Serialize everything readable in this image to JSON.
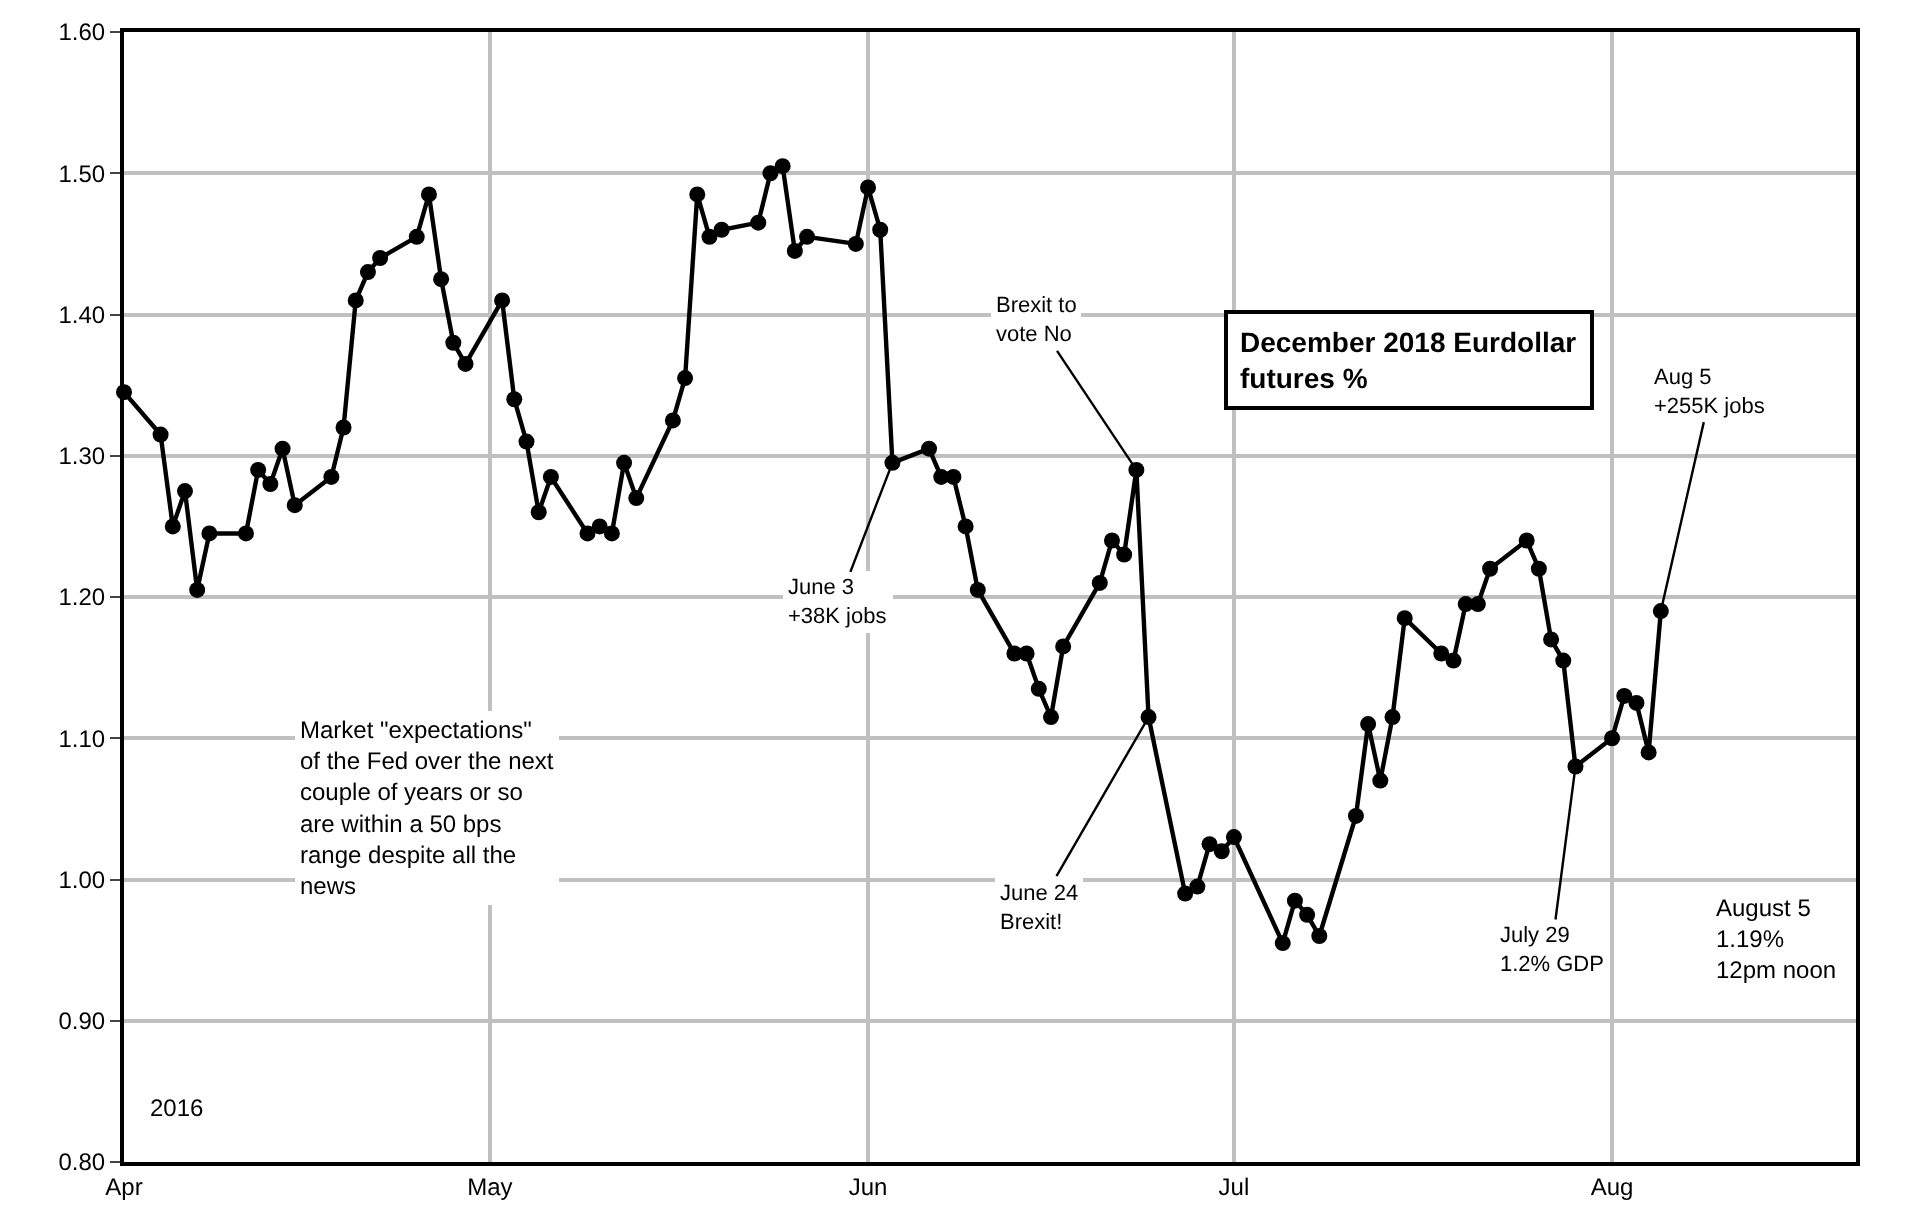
{
  "chart_data": {
    "type": "line",
    "title": "December 2018 Eurdollar futures %",
    "x": [
      "2016-04-01",
      "2016-04-04",
      "2016-04-05",
      "2016-04-06",
      "2016-04-07",
      "2016-04-08",
      "2016-04-11",
      "2016-04-12",
      "2016-04-13",
      "2016-04-14",
      "2016-04-15",
      "2016-04-18",
      "2016-04-19",
      "2016-04-20",
      "2016-04-21",
      "2016-04-22",
      "2016-04-25",
      "2016-04-26",
      "2016-04-27",
      "2016-04-28",
      "2016-04-29",
      "2016-05-02",
      "2016-05-03",
      "2016-05-04",
      "2016-05-05",
      "2016-05-06",
      "2016-05-09",
      "2016-05-10",
      "2016-05-11",
      "2016-05-12",
      "2016-05-13",
      "2016-05-16",
      "2016-05-17",
      "2016-05-18",
      "2016-05-19",
      "2016-05-20",
      "2016-05-23",
      "2016-05-24",
      "2016-05-25",
      "2016-05-26",
      "2016-05-27",
      "2016-05-31",
      "2016-06-01",
      "2016-06-02",
      "2016-06-03",
      "2016-06-06",
      "2016-06-07",
      "2016-06-08",
      "2016-06-09",
      "2016-06-10",
      "2016-06-13",
      "2016-06-14",
      "2016-06-15",
      "2016-06-16",
      "2016-06-17",
      "2016-06-20",
      "2016-06-21",
      "2016-06-22",
      "2016-06-23",
      "2016-06-24",
      "2016-06-27",
      "2016-06-28",
      "2016-06-29",
      "2016-06-30",
      "2016-07-01",
      "2016-07-05",
      "2016-07-06",
      "2016-07-07",
      "2016-07-08",
      "2016-07-11",
      "2016-07-12",
      "2016-07-13",
      "2016-07-14",
      "2016-07-15",
      "2016-07-18",
      "2016-07-19",
      "2016-07-20",
      "2016-07-21",
      "2016-07-22",
      "2016-07-25",
      "2016-07-26",
      "2016-07-27",
      "2016-07-28",
      "2016-07-29",
      "2016-08-01",
      "2016-08-02",
      "2016-08-03",
      "2016-08-04",
      "2016-08-05"
    ],
    "series": [
      {
        "color": "#000000",
        "values": [
          1.345,
          1.315,
          1.25,
          1.275,
          1.205,
          1.245,
          1.245,
          1.29,
          1.28,
          1.305,
          1.265,
          1.285,
          1.32,
          1.41,
          1.43,
          1.44,
          1.455,
          1.485,
          1.425,
          1.38,
          1.365,
          1.41,
          1.34,
          1.31,
          1.26,
          1.285,
          1.245,
          1.25,
          1.245,
          1.295,
          1.27,
          1.325,
          1.355,
          1.485,
          1.455,
          1.46,
          1.465,
          1.5,
          1.505,
          1.445,
          1.455,
          1.45,
          1.49,
          1.46,
          1.295,
          1.305,
          1.285,
          1.285,
          1.25,
          1.205,
          1.16,
          1.16,
          1.135,
          1.115,
          1.165,
          1.21,
          1.24,
          1.23,
          1.29,
          1.115,
          0.99,
          0.995,
          1.025,
          1.02,
          1.03,
          0.955,
          0.985,
          0.975,
          0.96,
          1.045,
          1.11,
          1.07,
          1.115,
          1.185,
          1.16,
          1.155,
          1.195,
          1.195,
          1.22,
          1.24,
          1.22,
          1.17,
          1.155,
          1.08,
          1.1,
          1.13,
          1.125,
          1.09,
          1.19
        ]
      }
    ],
    "xlim": [
      "2016-04-01",
      "2016-08-21"
    ],
    "xticks": [
      {
        "value": "2016-04-01",
        "label": "Apr"
      },
      {
        "value": "2016-05-01",
        "label": "May"
      },
      {
        "value": "2016-06-01",
        "label": "Jun"
      },
      {
        "value": "2016-07-01",
        "label": "Jul"
      },
      {
        "value": "2016-08-01",
        "label": "Aug"
      }
    ],
    "ylim": [
      0.8,
      1.6
    ],
    "yticks": [
      {
        "value": 0.8,
        "label": "0.80"
      },
      {
        "value": 0.9,
        "label": "0.90"
      },
      {
        "value": 1.0,
        "label": "1.00"
      },
      {
        "value": 1.1,
        "label": "1.10"
      },
      {
        "value": 1.2,
        "label": "1.20"
      },
      {
        "value": 1.3,
        "label": "1.30"
      },
      {
        "value": 1.4,
        "label": "1.40"
      },
      {
        "value": 1.5,
        "label": "1.50"
      },
      {
        "value": 1.6,
        "label": "1.60"
      }
    ],
    "grid": true,
    "legend": false,
    "marker": "circle",
    "line_style": "solid",
    "annotations": [
      "Market \"expectations\"\nof the Fed over the next\ncouple of years or so\nare within a 50 bps\nrange despite all the\nnews",
      {
        "text": "June 3\n+38K jobs",
        "x": "2016-06-03",
        "y": 1.295
      },
      {
        "text": "Brexit to\nvote No",
        "x": "2016-06-23",
        "y": 1.29
      },
      {
        "text": "June 24\nBrexit!",
        "x": "2016-06-24",
        "y": 1.115
      },
      {
        "text": "July 29\n1.2% GDP",
        "x": "2016-07-29",
        "y": 1.08
      },
      {
        "text": "Aug 5\n+255K jobs",
        "x": "2016-08-05",
        "y": 1.19
      },
      "August 5\n1.19%\n12pm noon",
      "2016"
    ]
  }
}
